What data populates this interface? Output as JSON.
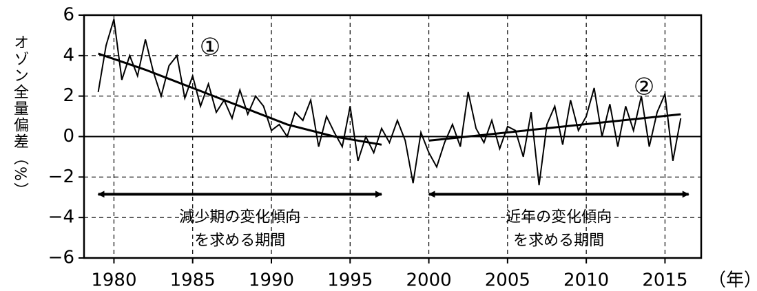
{
  "chart_data": {
    "type": "line",
    "y_label": "オゾン全量偏差（%）",
    "x_unit": "（年）",
    "annotations": [
      "①",
      "②"
    ],
    "periods": [
      {
        "lines": [
          "減少期の変化傾向",
          "を求める期間"
        ],
        "start": 1979,
        "end": 1997
      },
      {
        "lines": [
          "近年の変化傾向",
          "を求める期間"
        ],
        "start": 2000,
        "end": 2016.5
      }
    ],
    "xlim": [
      1978.1,
      2017.3
    ],
    "ylim": [
      -6,
      6
    ],
    "xticks": [
      1980,
      1985,
      1990,
      1995,
      2000,
      2005,
      2010,
      2015
    ],
    "yticks": [
      {
        "value": -6,
        "label": "−6"
      },
      {
        "value": -4,
        "label": "−4"
      },
      {
        "value": -2,
        "label": "−2"
      },
      0,
      2,
      4,
      6
    ],
    "grid": true,
    "series": [
      {
        "color": "#000000",
        "x": [
          1979,
          1979.5,
          1980,
          1980.5,
          1981,
          1981.5,
          1982,
          1982.5,
          1983,
          1983.5,
          1984,
          1984.5,
          1985,
          1985.5,
          1986,
          1986.5,
          1987,
          1987.5,
          1988,
          1988.5,
          1989,
          1989.5,
          1990,
          1990.5,
          1991,
          1991.5,
          1992,
          1992.5,
          1993,
          1993.5,
          1994,
          1994.5,
          1995,
          1995.5,
          1996,
          1996.5,
          1997,
          1997.5,
          1998,
          1998.5,
          1999,
          1999.5,
          2000,
          2000.5,
          2001,
          2001.5,
          2002,
          2002.5,
          2003,
          2003.5,
          2004,
          2004.5,
          2005,
          2005.5,
          2006,
          2006.5,
          2007,
          2007.5,
          2008,
          2008.5,
          2009,
          2009.5,
          2010,
          2010.5,
          2011,
          2011.5,
          2012,
          2012.5,
          2013,
          2013.5,
          2014,
          2014.5,
          2015,
          2015.5,
          2016
        ],
        "values": [
          2.2,
          4.5,
          5.8,
          2.8,
          4.0,
          3.0,
          4.8,
          3.2,
          2.0,
          3.5,
          4.0,
          1.9,
          3.0,
          1.5,
          2.6,
          1.2,
          1.8,
          0.9,
          2.3,
          1.1,
          2.0,
          1.5,
          0.3,
          0.6,
          0.0,
          1.2,
          0.8,
          1.8,
          -0.5,
          1.0,
          0.2,
          -0.5,
          1.5,
          -1.2,
          0.0,
          -0.8,
          0.4,
          -0.3,
          0.8,
          -0.2,
          -2.3,
          0.2,
          -0.8,
          -1.5,
          -0.3,
          0.6,
          -0.5,
          2.2,
          0.4,
          -0.3,
          0.8,
          -0.6,
          0.5,
          0.3,
          -1.0,
          1.2,
          -2.4,
          0.6,
          1.5,
          -0.4,
          1.8,
          0.3,
          1.0,
          2.4,
          0.0,
          1.6,
          -0.5,
          1.5,
          0.3,
          2.0,
          -0.5,
          1.2,
          2.1,
          -1.2,
          0.9
        ]
      },
      {
        "color": "#000000",
        "x": [
          1979,
          1982,
          1985,
          1988,
          1991,
          1994,
          1997
        ],
        "values": [
          4.1,
          3.3,
          2.4,
          1.5,
          0.6,
          0.0,
          -0.4
        ]
      },
      {
        "color": "#000000",
        "x": [
          2000,
          2016
        ],
        "values": [
          -0.2,
          1.1
        ]
      }
    ]
  }
}
